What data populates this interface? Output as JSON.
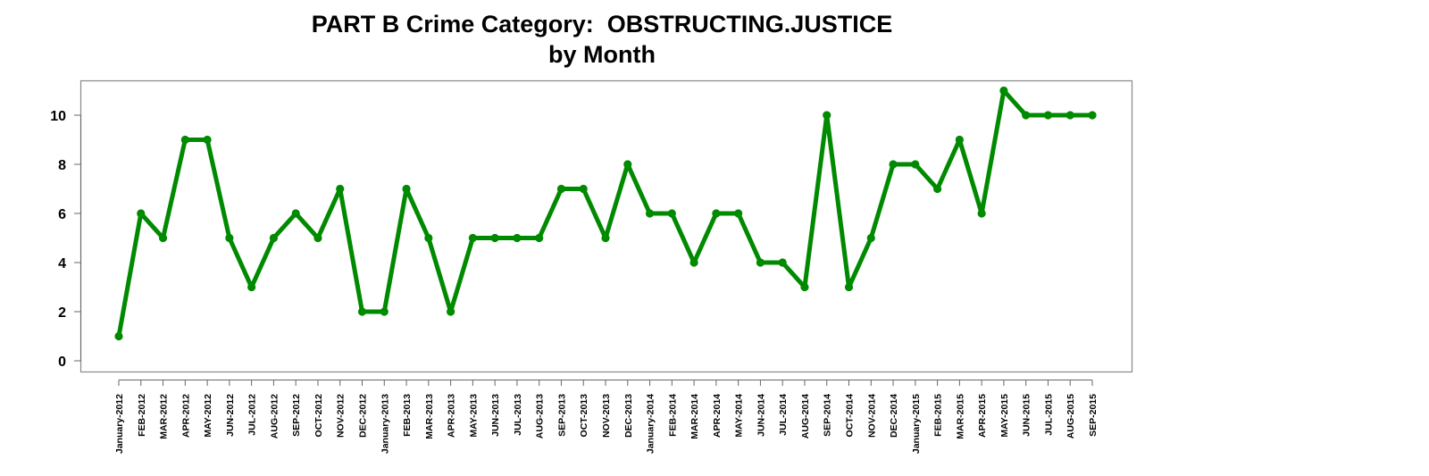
{
  "chart_data": {
    "type": "line",
    "title": "PART B Crime Category:  OBSTRUCTING.JUSTICE",
    "subtitle": "by Month",
    "xlabel": "",
    "ylabel": "",
    "ylim": [
      0,
      11
    ],
    "yticks": [
      0,
      2,
      4,
      6,
      8,
      10
    ],
    "grid": false,
    "legend": null,
    "line_color": "#008a00",
    "categories": [
      "January-2012",
      "FEB-2012",
      "MAR-2012",
      "APR-2012",
      "MAY-2012",
      "JUN-2012",
      "JUL-2012",
      "AUG-2012",
      "SEP-2012",
      "OCT-2012",
      "NOV-2012",
      "DEC-2012",
      "January-2013",
      "FEB-2013",
      "MAR-2013",
      "APR-2013",
      "MAY-2013",
      "JUN-2013",
      "JUL-2013",
      "AUG-2013",
      "SEP-2013",
      "OCT-2013",
      "NOV-2013",
      "DEC-2013",
      "January-2014",
      "FEB-2014",
      "MAR-2014",
      "APR-2014",
      "MAY-2014",
      "JUN-2014",
      "JUL-2014",
      "AUG-2014",
      "SEP-2014",
      "OCT-2014",
      "NOV-2014",
      "DEC-2014",
      "January-2015",
      "FEB-2015",
      "MAR-2015",
      "APR-2015",
      "MAY-2015",
      "JUN-2015",
      "JUL-2015",
      "AUG-2015",
      "SEP-2015"
    ],
    "series": [
      {
        "name": "OBSTRUCTING.JUSTICE",
        "values": [
          1,
          6,
          5,
          9,
          9,
          5,
          3,
          5,
          6,
          5,
          7,
          2,
          2,
          7,
          5,
          2,
          5,
          5,
          5,
          5,
          7,
          7,
          5,
          8,
          6,
          6,
          4,
          6,
          6,
          4,
          4,
          3,
          10,
          3,
          5,
          8,
          8,
          7,
          9,
          6,
          11,
          10,
          10,
          10,
          10
        ]
      }
    ]
  }
}
